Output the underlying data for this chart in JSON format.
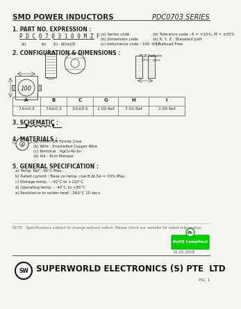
{
  "title_left": "SMD POWER INDUCTORS",
  "title_right": "PDC0703 SERIES",
  "section1_title": "1. PART NO. EXPRESSION :",
  "part_no": "P D C 0 7 0 3 1 0 0 M Z F",
  "part_no_notes_left": [
    "(a) Series code",
    "(b) Dimension code",
    "(c) Inductance code : 100 = 10uH"
  ],
  "part_no_notes_right": [
    "(d) Tolerance code : K = ±10%, M = ±20%",
    "(e) X, Y, Z : Standard part",
    "(f) F : Lead Free"
  ],
  "section2_title": "2. CONFIGURATION & DIMENSIONS :",
  "table_header": [
    "A",
    "B",
    "C",
    "G",
    "H",
    "I"
  ],
  "table_values": [
    "7.6±0.3",
    "7.6±0.3",
    "3.5±0.5",
    "2.00 Ref",
    "7.50 Ref",
    "3.00 Ref"
  ],
  "unit_label": "Unit : mm",
  "pcb_pattern_label": "PCB Pattern",
  "section3_title": "3. SCHEMATIC :",
  "section4_title": "4. MATERIALS :",
  "materials": [
    "(a) Core : DR Ferrite Core",
    "(b) Wire : Enamelled Copper Wire",
    "(c) Terminal : AgCu-Ni-Sn",
    "(d) Ink : 8cm Marque"
  ],
  "section5_title": "5. GENERAL SPECIFICATION :",
  "specs": [
    "a) Temp. Ref : 40°C Max.",
    "b) Rated current : Base on temp. rise 8 Δt,5A = 10% Max.",
    "c) Storage temp. : -40°C to +120°C",
    "d) Operating temp. : -40°C to +85°C",
    "e) Resistance to solder heat : 260°C 10 secs"
  ],
  "note": "NOTE : Specifications subject to change without notice. Please check our website for latest information.",
  "footer": "SUPERWORLD ELECTRONICS (S) PTE  LTD",
  "page_ref": "PG. 1",
  "date_ref": "01.05.2008",
  "bg_color": "#f5f5f0",
  "text_color": "#222222"
}
